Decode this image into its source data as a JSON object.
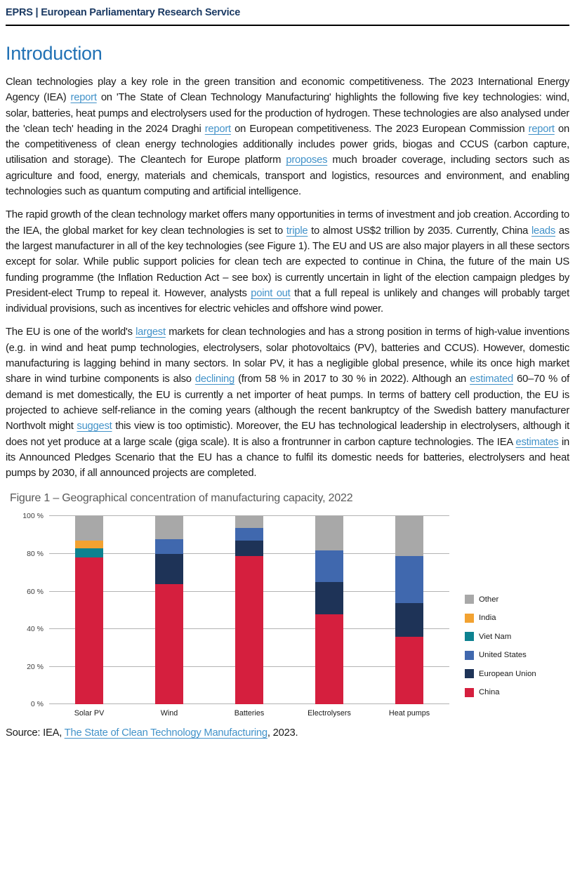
{
  "header": {
    "text": "EPRS | European Parliamentary Research Service"
  },
  "title": "Introduction",
  "paragraphs": [
    [
      {
        "t": "Clean technologies play a key role in the green transition and economic competitiveness. The 2023 International Energy Agency (IEA) "
      },
      {
        "t": "report",
        "link": true
      },
      {
        "t": " on 'The State of Clean Technology Manufacturing' highlights the following five key technologies: wind, solar, batteries, heat pumps and electrolysers used for the production of hydrogen. These technologies are also analysed under the 'clean tech' heading in the 2024 Draghi "
      },
      {
        "t": "report",
        "link": true
      },
      {
        "t": " on European competitiveness. The 2023 European Commission "
      },
      {
        "t": "report",
        "link": true
      },
      {
        "t": " on the competitiveness of clean energy technologies additionally includes power grids, biogas and CCUS (carbon capture, utilisation and storage). The Cleantech for Europe platform "
      },
      {
        "t": "proposes",
        "link": true
      },
      {
        "t": " much broader coverage, including sectors such as agriculture and food, energy, materials and chemicals, transport and logistics, resources and environment, and enabling technologies such as quantum computing and artificial intelligence."
      }
    ],
    [
      {
        "t": "The rapid growth of the clean technology market offers many opportunities in terms of investment and job creation. According to the IEA, the global market for key clean technologies is set to "
      },
      {
        "t": "triple",
        "link": true
      },
      {
        "t": " to almost US$2 trillion by 2035. Currently, China "
      },
      {
        "t": "leads",
        "link": true
      },
      {
        "t": " as the largest manufacturer in all of the key technologies (see Figure 1). The EU and US are also major players in all these sectors except for solar. While public support policies for clean tech are expected to continue in China, the future of the main US funding programme (the Inflation Reduction Act – see box) is currently uncertain in light of the election campaign pledges by President-elect Trump to repeal it. However, analysts "
      },
      {
        "t": "point out",
        "link": true
      },
      {
        "t": " that a full repeal is unlikely and changes will probably target individual provisions, such as incentives for electric vehicles and offshore wind power."
      }
    ],
    [
      {
        "t": "The EU is one of the world's "
      },
      {
        "t": "largest",
        "link": true
      },
      {
        "t": " markets for clean technologies and has a strong position in terms of high-value inventions (e.g. in wind and heat pump technologies, electrolysers, solar photovoltaics (PV), batteries and CCUS). However, domestic manufacturing is lagging behind in many sectors. In solar PV, it has a negligible global presence, while its once high market share in wind turbine components is also "
      },
      {
        "t": "declining",
        "link": true
      },
      {
        "t": " (from 58 % in 2017 to 30 % in 2022). Although an "
      },
      {
        "t": "estimated",
        "link": true
      },
      {
        "t": " 60–70 % of demand is met domestically, the EU is currently a net importer of heat pumps. In terms of battery cell production, the EU is projected to achieve self-reliance in the coming years (although the recent bankruptcy of the Swedish battery manufacturer Northvolt might "
      },
      {
        "t": "suggest",
        "link": true
      },
      {
        "t": " this view is too optimistic). Moreover, the EU has technological leadership in electrolysers, although it does not yet produce at a large scale (giga scale). It is also a frontrunner in carbon capture technologies. The IEA "
      },
      {
        "t": "estimates",
        "link": true
      },
      {
        "t": " in its Announced Pledges Scenario that the EU has a chance to fulfil its domestic needs for batteries, electrolysers and heat pumps by 2030, if all announced projects are completed."
      }
    ]
  ],
  "figure": {
    "title": "Figure 1 – Geographical concentration of manufacturing capacity, 2022",
    "source_prefix": "Source: IEA, ",
    "source_link": "The State of Clean Technology Manufacturing",
    "source_suffix": ", 2023."
  },
  "chart_data": {
    "type": "bar",
    "subtype": "stacked-percent",
    "title": "Figure 1 – Geographical concentration of manufacturing capacity, 2022",
    "categories": [
      "Solar PV",
      "Wind",
      "Batteries",
      "Electrolysers",
      "Heat pumps"
    ],
    "series": [
      {
        "name": "China",
        "color": "#d51f3e",
        "values": [
          78,
          64,
          79,
          48,
          36
        ]
      },
      {
        "name": "European Union",
        "color": "#1e3357",
        "values": [
          0,
          16,
          8,
          17,
          18
        ]
      },
      {
        "name": "United States",
        "color": "#4068ae",
        "values": [
          0,
          8,
          7,
          17,
          25
        ]
      },
      {
        "name": "Viet Nam",
        "color": "#0d8290",
        "values": [
          5,
          0,
          0,
          0,
          0
        ]
      },
      {
        "name": "India",
        "color": "#f2a231",
        "values": [
          4,
          0,
          0,
          0,
          0
        ]
      },
      {
        "name": "Other",
        "color": "#a8a8a8",
        "values": [
          13,
          12,
          6,
          18,
          21
        ]
      }
    ],
    "y_ticks": [
      {
        "v": 0,
        "label": "0 %"
      },
      {
        "v": 20,
        "label": "20 %"
      },
      {
        "v": 40,
        "label": "40 %"
      },
      {
        "v": 60,
        "label": "60 %"
      },
      {
        "v": 80,
        "label": "80 %"
      },
      {
        "v": 100,
        "label": "100 %"
      }
    ],
    "ylim": [
      0,
      100
    ],
    "grid": true,
    "legend_position": "right"
  },
  "colors": {
    "header_text": "#1b3a63",
    "heading": "#2272b5",
    "link": "#4292c9",
    "figure_title": "#595959",
    "rule": "#000000"
  }
}
